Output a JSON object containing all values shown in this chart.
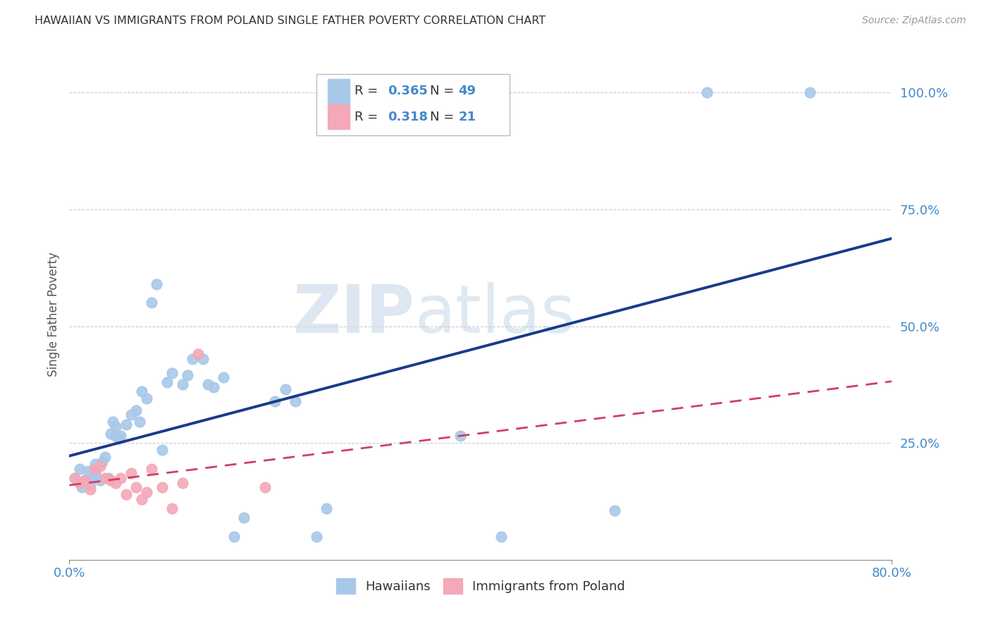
{
  "title": "HAWAIIAN VS IMMIGRANTS FROM POLAND SINGLE FATHER POVERTY CORRELATION CHART",
  "source": "Source: ZipAtlas.com",
  "ylabel": "Single Father Poverty",
  "xlim": [
    0.0,
    0.8
  ],
  "ylim": [
    0.0,
    1.05
  ],
  "x_tick_vals": [
    0.0,
    0.8
  ],
  "x_tick_labels": [
    "0.0%",
    "80.0%"
  ],
  "y_tick_vals": [
    0.25,
    0.5,
    0.75,
    1.0
  ],
  "y_tick_labels": [
    "25.0%",
    "50.0%",
    "75.0%",
    "100.0%"
  ],
  "hawaiians_x": [
    0.005,
    0.01,
    0.012,
    0.015,
    0.018,
    0.02,
    0.022,
    0.025,
    0.025,
    0.03,
    0.032,
    0.035,
    0.038,
    0.04,
    0.042,
    0.045,
    0.045,
    0.048,
    0.05,
    0.055,
    0.06,
    0.065,
    0.068,
    0.07,
    0.075,
    0.08,
    0.085,
    0.09,
    0.095,
    0.1,
    0.11,
    0.115,
    0.12,
    0.13,
    0.135,
    0.14,
    0.15,
    0.16,
    0.17,
    0.2,
    0.21,
    0.22,
    0.24,
    0.25,
    0.38,
    0.42,
    0.53,
    0.62,
    0.72
  ],
  "hawaiians_y": [
    0.175,
    0.195,
    0.155,
    0.17,
    0.19,
    0.16,
    0.175,
    0.205,
    0.185,
    0.17,
    0.21,
    0.22,
    0.175,
    0.27,
    0.295,
    0.265,
    0.285,
    0.26,
    0.265,
    0.29,
    0.31,
    0.32,
    0.295,
    0.36,
    0.345,
    0.55,
    0.59,
    0.235,
    0.38,
    0.4,
    0.375,
    0.395,
    0.43,
    0.43,
    0.375,
    0.37,
    0.39,
    0.05,
    0.09,
    0.34,
    0.365,
    0.34,
    0.05,
    0.11,
    0.265,
    0.05,
    0.105,
    1.0,
    1.0
  ],
  "poland_x": [
    0.005,
    0.01,
    0.015,
    0.02,
    0.025,
    0.03,
    0.035,
    0.04,
    0.045,
    0.05,
    0.055,
    0.06,
    0.065,
    0.07,
    0.075,
    0.08,
    0.09,
    0.1,
    0.11,
    0.125,
    0.19
  ],
  "poland_y": [
    0.175,
    0.165,
    0.17,
    0.15,
    0.195,
    0.2,
    0.175,
    0.17,
    0.165,
    0.175,
    0.14,
    0.185,
    0.155,
    0.13,
    0.145,
    0.195,
    0.155,
    0.11,
    0.165,
    0.44,
    0.155
  ],
  "hawaiians_color": "#a8c8e8",
  "poland_color": "#f4a8b8",
  "hawaii_line_color": "#1a3a8a",
  "poland_line_color": "#d04060",
  "legend_r_hawaii": "0.365",
  "legend_n_hawaii": "49",
  "legend_r_poland": "0.318",
  "legend_n_poland": "21",
  "watermark_zip": "ZIP",
  "watermark_atlas": "atlas",
  "background_color": "#ffffff",
  "grid_color": "#cccccc"
}
